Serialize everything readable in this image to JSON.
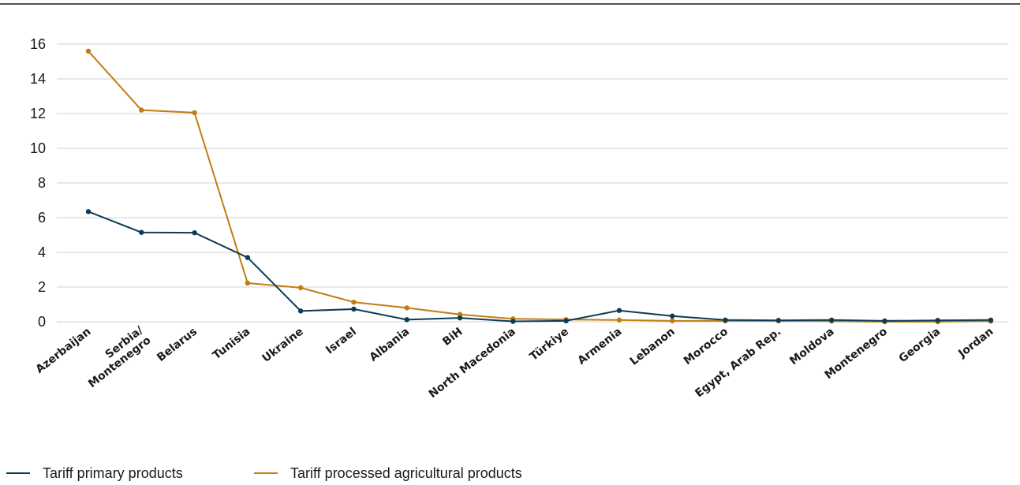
{
  "chart_data": {
    "type": "line",
    "title": "",
    "xlabel": "",
    "ylabel": "",
    "ylim": [
      0,
      16
    ],
    "yticks": [
      "0",
      "2",
      "4",
      "6",
      "8",
      "10",
      "12",
      "14",
      "16"
    ],
    "grid": true,
    "legend_position": "bottom-left",
    "categories": [
      "Azerbaijan",
      "Serbia/\nMontenegro",
      "Belarus",
      "Tunisia",
      "Ukraine",
      "Israel",
      "Albania",
      "BiH",
      "North Macedonia",
      "Türkiye",
      "Armenia",
      "Lebanon",
      "Morocco",
      "Egypt, Arab Rep.",
      "Moldova",
      "Montenegro",
      "Georgia",
      "Jordan"
    ],
    "series": [
      {
        "name": "Tariff primary products",
        "color": "#0d3b55",
        "values": [
          6.35,
          5.15,
          5.13,
          3.7,
          0.62,
          0.73,
          0.12,
          0.22,
          0.02,
          0.05,
          0.65,
          0.33,
          0.1,
          0.08,
          0.1,
          0.05,
          0.08,
          0.1
        ]
      },
      {
        "name": "Tariff processed agricultural products",
        "color": "#c17d10",
        "values": [
          15.6,
          12.2,
          12.05,
          2.23,
          1.96,
          1.13,
          0.8,
          0.42,
          0.17,
          0.13,
          0.1,
          0.05,
          0.05,
          0.05,
          0.03,
          0.0,
          0.0,
          0.03
        ]
      }
    ]
  }
}
